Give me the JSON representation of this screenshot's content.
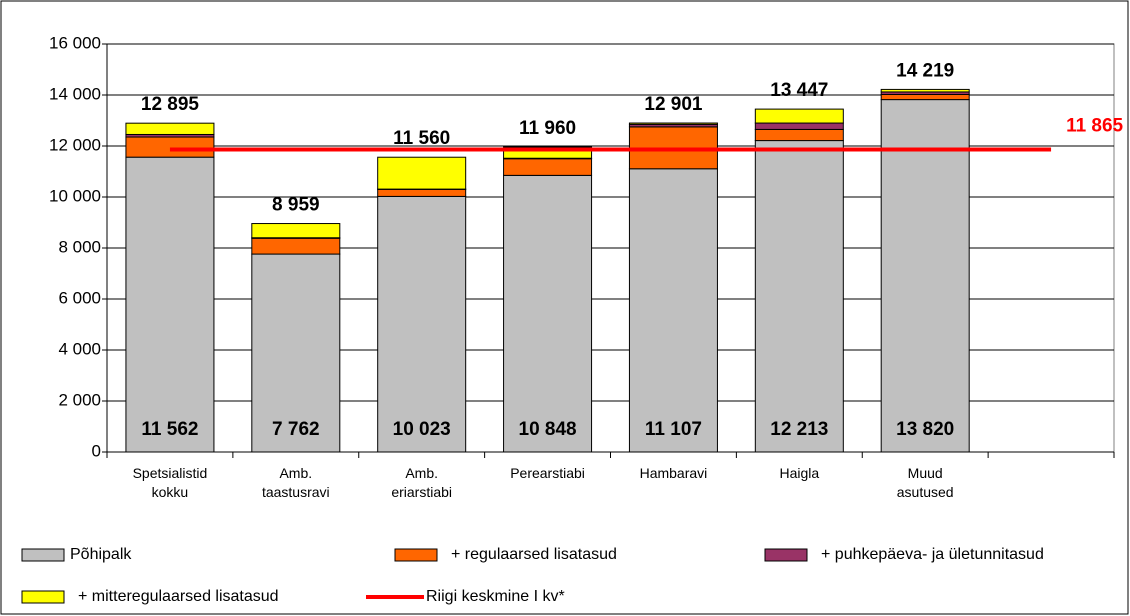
{
  "chart_data": {
    "type": "stacked_bar",
    "categories": [
      "Spetsialistid kokku",
      "Amb. taastusravi",
      "Amb. eriarstiabi",
      "Perearstiabi",
      "Hambaravi",
      "Haigla",
      "Muud asutused",
      null
    ],
    "series": [
      {
        "name": "Põhipalk",
        "color": "#c0c0c0",
        "values": [
          11562,
          7762,
          10023,
          10848,
          11107,
          12213,
          13820,
          null
        ],
        "value_labels": [
          "11 562",
          "7 762",
          "10 023",
          "10 848",
          "11 107",
          "12 213",
          "13 820",
          null
        ]
      },
      {
        "name": "+ regulaarsed lisatasud",
        "color": "#ff6600",
        "values": [
          790,
          620,
          277,
          652,
          1643,
          437,
          200,
          null
        ]
      },
      {
        "name": "+ puhkepäeva- ja ületunnitasud",
        "color": "#993366",
        "values": [
          100,
          20,
          10,
          20,
          100,
          250,
          100,
          null
        ]
      },
      {
        "name": "+ mitteregulaarsed lisatasud",
        "color": "#ffff00",
        "values": [
          443,
          557,
          1250,
          440,
          51,
          547,
          99,
          null
        ]
      }
    ],
    "totals": {
      "values": [
        12895,
        8959,
        11560,
        11960,
        12901,
        13447,
        14219,
        null
      ],
      "value_labels": [
        "12 895",
        "8 959",
        "11 560",
        "11 960",
        "12 901",
        "13 447",
        "14 219",
        null
      ]
    },
    "reference_line": {
      "name": "Riigi keskmine I kv*",
      "color": "#ff0000",
      "value": 11865,
      "value_label": "11 865"
    },
    "ylim": [
      0,
      16000
    ],
    "yticks": [
      0,
      {
        "value": 2000,
        "label": "2 000"
      },
      {
        "value": 4000,
        "label": "4 000"
      },
      {
        "value": 6000,
        "label": "6 000"
      },
      {
        "value": 8000,
        "label": "8 000"
      },
      {
        "value": 10000,
        "label": "10 000"
      },
      {
        "value": 12000,
        "label": "12 000"
      },
      {
        "value": 14000,
        "label": "14 000"
      },
      {
        "value": 16000,
        "label": "16 000"
      }
    ],
    "grid": true,
    "legend": "bottom"
  }
}
